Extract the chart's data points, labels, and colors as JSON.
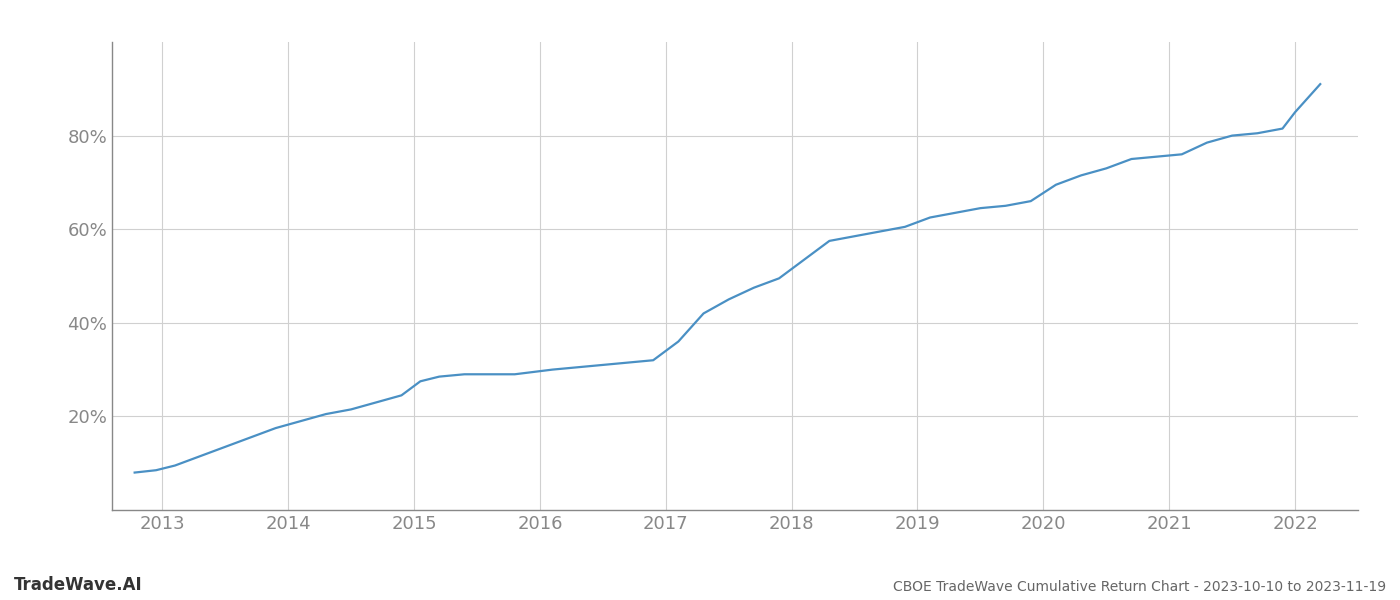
{
  "title": "CBOE TradeWave Cumulative Return Chart - 2023-10-10 to 2023-11-19",
  "watermark": "TradeWave.AI",
  "line_color": "#4a90c4",
  "background_color": "#ffffff",
  "grid_color": "#d0d0d0",
  "x_years": [
    2013,
    2014,
    2015,
    2016,
    2017,
    2018,
    2019,
    2020,
    2021,
    2022
  ],
  "x_data": [
    2012.78,
    2012.95,
    2013.1,
    2013.3,
    2013.5,
    2013.7,
    2013.9,
    2014.1,
    2014.3,
    2014.5,
    2014.7,
    2014.9,
    2015.05,
    2015.2,
    2015.4,
    2015.6,
    2015.8,
    2015.95,
    2016.1,
    2016.3,
    2016.5,
    2016.7,
    2016.9,
    2017.1,
    2017.3,
    2017.5,
    2017.7,
    2017.9,
    2018.1,
    2018.3,
    2018.5,
    2018.7,
    2018.9,
    2019.1,
    2019.3,
    2019.5,
    2019.7,
    2019.9,
    2020.1,
    2020.3,
    2020.5,
    2020.7,
    2020.9,
    2021.1,
    2021.3,
    2021.5,
    2021.7,
    2021.9,
    2022.0,
    2022.2
  ],
  "y_data": [
    8.0,
    8.5,
    9.5,
    11.5,
    13.5,
    15.5,
    17.5,
    19.0,
    20.5,
    21.5,
    23.0,
    24.5,
    27.5,
    28.5,
    29.0,
    29.0,
    29.0,
    29.5,
    30.0,
    30.5,
    31.0,
    31.5,
    32.0,
    36.0,
    42.0,
    45.0,
    47.5,
    49.5,
    53.5,
    57.5,
    58.5,
    59.5,
    60.5,
    62.5,
    63.5,
    64.5,
    65.0,
    66.0,
    69.5,
    71.5,
    73.0,
    75.0,
    75.5,
    76.0,
    78.5,
    80.0,
    80.5,
    81.5,
    85.0,
    91.0
  ],
  "yticks": [
    20,
    40,
    60,
    80
  ],
  "ytick_labels": [
    "20%",
    "40%",
    "60%",
    "80%"
  ],
  "xlim": [
    2012.6,
    2022.5
  ],
  "ylim": [
    0,
    100
  ],
  "spine_color": "#888888",
  "label_color": "#888888",
  "title_color": "#666666",
  "watermark_color": "#333333",
  "line_width": 1.6,
  "title_fontsize": 10,
  "tick_fontsize": 13,
  "watermark_fontsize": 12
}
